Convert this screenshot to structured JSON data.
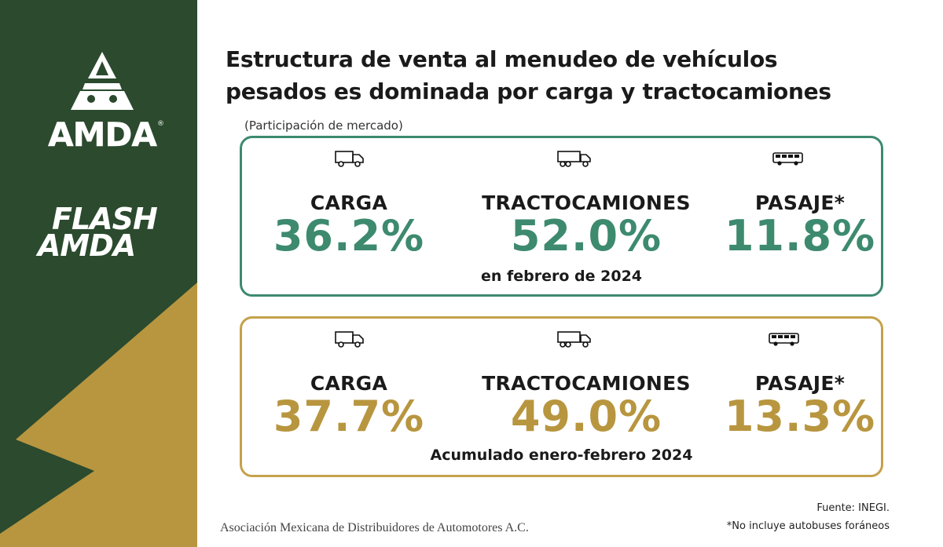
{
  "brand": {
    "logo_text": "AMDA",
    "flash_line1": "FLASH",
    "flash_line2": "AMDA",
    "colors": {
      "panel": "#2b4a2e",
      "gold": "#c5a14a",
      "green": "#3d8a6f"
    }
  },
  "title": "Estructura de venta al menudeo de vehículos pesados es dominada por carga y tractocamiones",
  "subtitle": "(Participación de mercado)",
  "cards": [
    {
      "period": "en febrero de 2024",
      "items": [
        {
          "label": "CARGA",
          "value": "36.2%",
          "icon": "truck-icon"
        },
        {
          "label": "TRACTOCAMIONES",
          "value": "52.0%",
          "icon": "tractor-trailer-icon"
        },
        {
          "label": "PASAJE*",
          "value": "11.8%",
          "icon": "bus-icon"
        }
      ]
    },
    {
      "period": "Acumulado enero-febrero 2024",
      "items": [
        {
          "label": "CARGA",
          "value": "37.7%",
          "icon": "truck-icon"
        },
        {
          "label": "TRACTOCAMIONES",
          "value": "49.0%",
          "icon": "tractor-trailer-icon"
        },
        {
          "label": "PASAJE*",
          "value": "13.3%",
          "icon": "bus-icon"
        }
      ]
    }
  ],
  "footer": {
    "organization": "Asociación Mexicana de Distribuidores de Automotores A.C.",
    "source": "Fuente: INEGI.",
    "note": "*No incluye autobuses foráneos"
  }
}
